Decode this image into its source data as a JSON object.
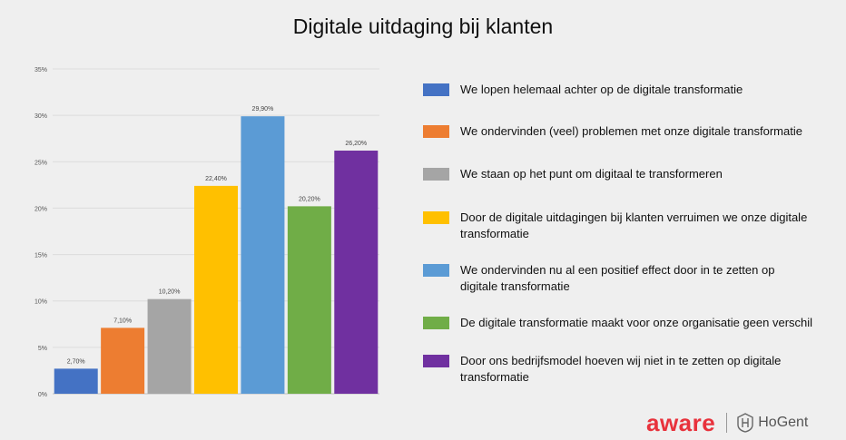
{
  "title": "Digitale uitdaging bij klanten",
  "chart_data": {
    "type": "bar",
    "title": "Digitale uitdaging bij klanten",
    "categories": [
      "We lopen helemaal achter op de digitale transformatie",
      "We ondervinden (veel) problemen met onze digitale transformatie",
      "We staan op het punt om digitaal te transformeren",
      "Door de digitale uitdagingen bij klanten verruimen we onze digitale transformatie",
      "We ondervinden nu al een positief effect door in te zetten op digitale transformatie",
      "De digitale transformatie maakt voor onze organisatie geen verschil",
      "Door ons bedrijfsmodel hoeven wij niet in te zetten op digitale transformatie"
    ],
    "values": [
      2.7,
      7.1,
      10.2,
      22.4,
      29.9,
      20.2,
      26.2
    ],
    "data_labels": [
      "2,70%",
      "7,10%",
      "10,20%",
      "22,40%",
      "29,90%",
      "20,20%",
      "26,20%"
    ],
    "colors": [
      "#4472c4",
      "#ed7d31",
      "#a5a5a5",
      "#ffc000",
      "#5b9bd5",
      "#70ad47",
      "#7030a0"
    ],
    "ylim": [
      0,
      35
    ],
    "yticks": [
      "0%",
      "5%",
      "10%",
      "15%",
      "20%",
      "25%",
      "30%",
      "35%"
    ],
    "grid": true,
    "legend_position": "right",
    "xlabel": "",
    "ylabel": ""
  },
  "legend": [
    {
      "line1": "We lopen helemaal achter op de digitale transformatie",
      "line2": ""
    },
    {
      "line1": "We ondervinden (veel) problemen met onze digitale transformatie",
      "line2": ""
    },
    {
      "line1": "We staan op het punt om digitaal te transformeren",
      "line2": ""
    },
    {
      "line1": "Door de digitale uitdagingen bij klanten verruimen we onze digitale",
      "line2": "transformatie"
    },
    {
      "line1": "We ondervinden nu al een positief effect door in te zetten op",
      "line2": "digitale transformatie"
    },
    {
      "line1": "De digitale transformatie maakt voor onze organisatie geen verschil",
      "line2": ""
    },
    {
      "line1": "Door ons bedrijfsmodel hoeven wij niet in te zetten op digitale",
      "line2": "transformatie"
    }
  ],
  "logos": {
    "aware": "aware",
    "hogent": "HoGent",
    "aware_color": "#e8323c"
  }
}
